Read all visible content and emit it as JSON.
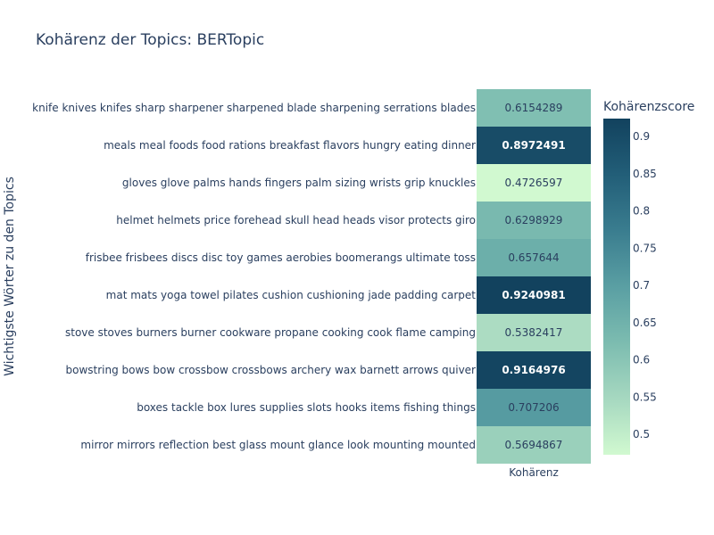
{
  "chart_data": {
    "type": "heatmap",
    "title": "Kohärenz der Topics: BERTopic",
    "xlabel": "",
    "ylabel": "Wichtigste Wörter zu den Topics",
    "x_categories": [
      "Kohärenz"
    ],
    "y_categories": [
      "knife knives knifes sharp sharpener sharpened blade sharpening serrations blades",
      "meals meal foods food rations breakfast flavors hungry eating dinner",
      "gloves glove palms hands fingers palm sizing wrists grip knuckles",
      "helmet helmets price forehead skull head heads visor protects giro",
      "frisbee frisbees discs disc toy games aerobies boomerangs ultimate toss",
      "mat mats yoga towel pilates cushion cushioning jade padding carpet",
      "stove stoves burners burner cookware propane cooking cook flame camping",
      "bowstring bows bow crossbow crossbows archery wax barnett arrows quiver",
      "boxes tackle box lures supplies slots hooks items fishing things",
      "mirror mirrors reflection best glass mount glance look mounting mounted"
    ],
    "values": [
      0.6154289,
      0.8972491,
      0.4726597,
      0.6298929,
      0.657644,
      0.9240981,
      0.5382417,
      0.9164976,
      0.707206,
      0.5694867
    ],
    "value_labels": [
      "0.6154289",
      "0.8972491",
      "0.4726597",
      "0.6298929",
      "0.657644",
      "0.9240981",
      "0.5382417",
      "0.9164976",
      "0.707206",
      "0.5694867"
    ],
    "colorscale": [
      "#d1f9d0",
      "#a6d8c0",
      "#7cbcb0",
      "#5a9fa3",
      "#3a7d8f",
      "#225e78",
      "#12425e"
    ],
    "colorbar": {
      "title": "Kohärenzscore",
      "range": [
        0.4726597,
        0.9240981
      ],
      "ticks": [
        "0.5",
        "0.55",
        "0.6",
        "0.65",
        "0.7",
        "0.75",
        "0.8",
        "0.85",
        "0.9"
      ]
    }
  }
}
